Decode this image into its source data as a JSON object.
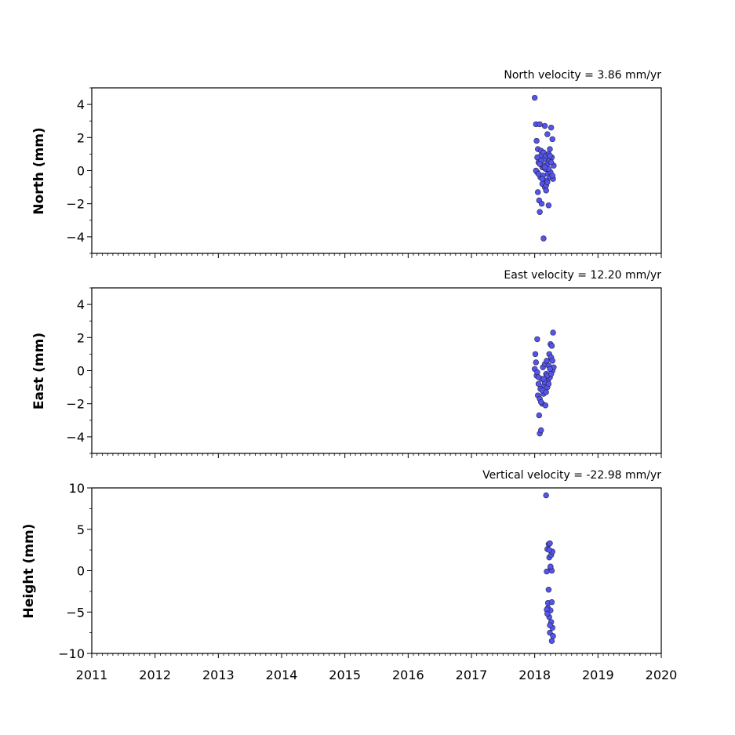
{
  "colors": {
    "marker_fill": "#5555ee",
    "marker_edge": "#222244",
    "axis": "#000000"
  },
  "chart_data": [
    {
      "type": "scatter",
      "title": "North velocity = 3.86 mm/yr",
      "xlabel": "",
      "ylabel": "North (mm)",
      "xlim": [
        2011,
        2020
      ],
      "ylim": [
        -5,
        5
      ],
      "yticks": [
        -4,
        -2,
        0,
        2,
        4
      ],
      "ytick_labels": [
        "−4",
        "−2",
        "0",
        "2",
        "4"
      ],
      "xtick_labels": [],
      "grid": false,
      "x": [
        2018.0,
        2018.02,
        2018.03,
        2018.04,
        2018.05,
        2018.05,
        2018.06,
        2018.07,
        2018.08,
        2018.08,
        2018.09,
        2018.1,
        2018.1,
        2018.11,
        2018.12,
        2018.12,
        2018.13,
        2018.14,
        2018.14,
        2018.15,
        2018.16,
        2018.16,
        2018.17,
        2018.18,
        2018.18,
        2018.19,
        2018.2,
        2018.2,
        2018.21,
        2018.22,
        2018.22,
        2018.23,
        2018.24,
        2018.24,
        2018.25,
        2018.26,
        2018.27,
        2018.28,
        2018.29,
        2018.3,
        2018.02,
        2018.06,
        2018.1,
        2018.14,
        2018.18,
        2018.22,
        2018.26,
        2018.04,
        2018.08,
        2018.12,
        2018.16,
        2018.2,
        2018.24,
        2018.28
      ],
      "y": [
        4.4,
        2.8,
        1.8,
        -0.1,
        1.3,
        -1.3,
        0.5,
        -1.8,
        -2.5,
        2.8,
        -0.4,
        1.2,
        0.9,
        -2.0,
        0.2,
        -0.8,
        -0.3,
        1.1,
        -4.1,
        0.7,
        -1.0,
        2.7,
        0.1,
        0.9,
        -1.2,
        -0.6,
        2.2,
        0.4,
        -0.2,
        1.0,
        -2.1,
        0.6,
        -0.4,
        1.3,
        -0.1,
        2.6,
        0.8,
        1.9,
        -0.5,
        0.3,
        0.0,
        -0.2,
        0.6,
        0.3,
        -0.9,
        0.1,
        0.5,
        0.8,
        0.4,
        -0.5,
        0.2,
        -0.7,
        0.9,
        -0.3
      ]
    },
    {
      "type": "scatter",
      "title": "East velocity = 12.20 mm/yr",
      "xlabel": "",
      "ylabel": "East (mm)",
      "xlim": [
        2011,
        2020
      ],
      "ylim": [
        -5,
        5
      ],
      "yticks": [
        -4,
        -2,
        0,
        2,
        4
      ],
      "ytick_labels": [
        "−4",
        "−2",
        "0",
        "2",
        "4"
      ],
      "xtick_labels": [],
      "grid": false,
      "x": [
        2018.0,
        2018.01,
        2018.02,
        2018.03,
        2018.04,
        2018.05,
        2018.06,
        2018.07,
        2018.08,
        2018.09,
        2018.1,
        2018.11,
        2018.12,
        2018.13,
        2018.14,
        2018.15,
        2018.16,
        2018.17,
        2018.18,
        2018.19,
        2018.2,
        2018.21,
        2018.22,
        2018.23,
        2018.24,
        2018.25,
        2018.26,
        2018.27,
        2018.28,
        2018.29,
        2018.3,
        2018.04,
        2018.08,
        2018.12,
        2018.16,
        2018.2,
        2018.24,
        2018.28,
        2018.06,
        2018.1,
        2018.14,
        2018.18,
        2018.22,
        2018.26
      ],
      "y": [
        0.1,
        1.0,
        0.5,
        -0.3,
        1.9,
        -1.5,
        -0.8,
        -2.7,
        -3.8,
        -1.1,
        -3.6,
        -0.5,
        -2.0,
        0.2,
        -1.4,
        -0.9,
        0.4,
        -2.1,
        -0.2,
        0.6,
        -1.0,
        -0.6,
        0.3,
        1.0,
        -0.4,
        1.6,
        0.8,
        1.5,
        0.0,
        2.3,
        0.2,
        -0.1,
        -1.7,
        -1.2,
        -0.7,
        -0.3,
        0.1,
        0.6,
        -0.4,
        -1.9,
        -0.5,
        -1.3,
        -0.8,
        -0.2
      ]
    },
    {
      "type": "scatter",
      "title": "Vertical velocity = -22.98 mm/yr",
      "xlabel": "",
      "ylabel": "Height (mm)",
      "xlim": [
        2011,
        2020
      ],
      "ylim": [
        -10,
        10
      ],
      "yticks": [
        -10,
        -5,
        0,
        5,
        10
      ],
      "ytick_labels": [
        "−10",
        "−5",
        "0",
        "5",
        "10"
      ],
      "xticks": [
        2011,
        2012,
        2013,
        2014,
        2015,
        2016,
        2017,
        2018,
        2019,
        2020
      ],
      "xtick_labels": [
        "2011",
        "2012",
        "2013",
        "2014",
        "2015",
        "2016",
        "2017",
        "2018",
        "2019",
        "2020"
      ],
      "grid": false,
      "x": [
        2018.18,
        2018.19,
        2018.2,
        2018.21,
        2018.22,
        2018.22,
        2018.23,
        2018.23,
        2018.24,
        2018.24,
        2018.25,
        2018.25,
        2018.26,
        2018.26,
        2018.27,
        2018.27,
        2018.28,
        2018.28,
        2018.29,
        2018.19,
        2018.21,
        2018.23,
        2018.25,
        2018.27,
        2018.2,
        2018.24
      ],
      "y": [
        9.1,
        -0.1,
        2.6,
        -4.5,
        3.2,
        -2.3,
        1.6,
        -5.6,
        3.3,
        -7.5,
        0.4,
        -4.8,
        1.9,
        -6.2,
        0.0,
        -8.5,
        2.3,
        -6.9,
        -7.9,
        -4.7,
        -3.9,
        2.5,
        0.5,
        -3.8,
        -5.2,
        -6.6
      ]
    }
  ]
}
